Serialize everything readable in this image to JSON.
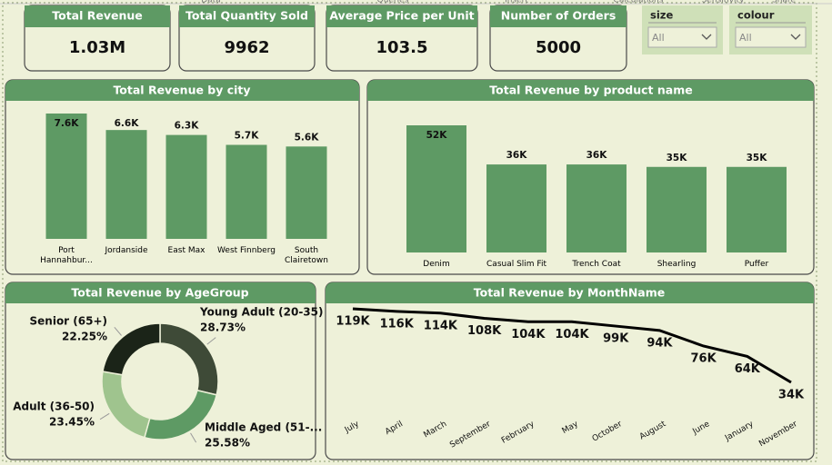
{
  "top_tabs": [
    "Data",
    "Queries",
    "Insert",
    "Calculations",
    "Sensitivity",
    "Share"
  ],
  "kpis": [
    {
      "title": "Total Revenue",
      "value": "1.03M"
    },
    {
      "title": "Total Quantity Sold",
      "value": 9962
    },
    {
      "title": "Average Price per Unit",
      "value": 103.5
    },
    {
      "title": "Number of Orders",
      "value": 5000
    }
  ],
  "slicers": [
    {
      "title": "size",
      "value": "All"
    },
    {
      "title": "colour",
      "value": "All"
    }
  ],
  "chart_data": [
    {
      "type": "bar",
      "title": "Total Revenue by city",
      "categories": [
        "Port Hannahbur...",
        "Jordanside",
        "East Max",
        "West Finnberg",
        "South Clairetown"
      ],
      "values": [
        7600,
        6600,
        6300,
        5700,
        5600
      ],
      "value_labels": [
        "7.6K",
        "6.6K",
        "6.3K",
        "5.7K",
        "5.6K"
      ],
      "color": "#5e9a64"
    },
    {
      "type": "bar",
      "title": "Total Revenue by product name",
      "categories": [
        "Denim",
        "Casual Slim Fit",
        "Trench Coat",
        "Shearling",
        "Puffer"
      ],
      "values": [
        52000,
        36000,
        36000,
        35000,
        35000
      ],
      "value_labels": [
        "52K",
        "36K",
        "36K",
        "35K",
        "35K"
      ],
      "color": "#5e9a64"
    },
    {
      "type": "pie",
      "title": "Total Revenue by AgeGroup",
      "categories": [
        "Young Adult (20-35)",
        "Middle Aged (51-...",
        "Adult (36-50)",
        "Senior (65+)"
      ],
      "values": [
        28.73,
        25.58,
        23.45,
        22.25
      ],
      "value_labels": [
        "28.73%",
        "25.58%",
        "23.45%",
        "22.25%"
      ],
      "colors": [
        "#3e4a37",
        "#5e9a64",
        "#9fc48e",
        "#1b2418"
      ]
    },
    {
      "type": "line",
      "title": "Total Revenue by MonthName",
      "categories": [
        "July",
        "April",
        "March",
        "September",
        "February",
        "May",
        "October",
        "August",
        "June",
        "January",
        "November"
      ],
      "values": [
        119000,
        116000,
        114000,
        108000,
        104000,
        104000,
        99000,
        94000,
        76000,
        64000,
        34000
      ],
      "value_labels": [
        "119K",
        "116K",
        "114K",
        "108K",
        "104K",
        "104K",
        "99K",
        "94K",
        "76K",
        "64K",
        "34K"
      ],
      "color": "#000000"
    }
  ]
}
